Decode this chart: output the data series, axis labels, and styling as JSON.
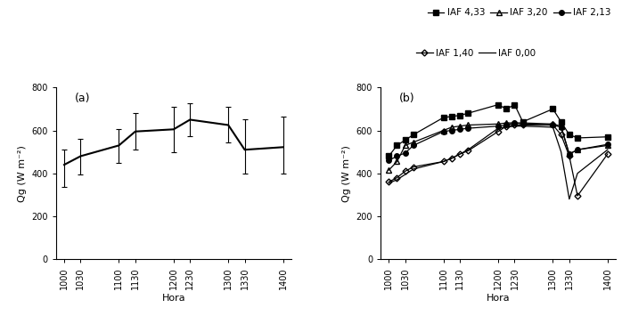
{
  "hours": [
    1000,
    1030,
    1100,
    1130,
    1200,
    1230,
    1300,
    1330,
    1400
  ],
  "hours_b": [
    1000,
    1015,
    1030,
    1045,
    1100,
    1115,
    1130,
    1145,
    1200,
    1215,
    1230,
    1245,
    1300,
    1315,
    1330,
    1345,
    1400
  ],
  "mean_a": [
    440,
    480,
    530,
    595,
    605,
    650,
    625,
    510,
    522
  ],
  "std_up_a": [
    510,
    560,
    605,
    680,
    710,
    725,
    710,
    650,
    665
  ],
  "std_dn_a": [
    335,
    395,
    450,
    510,
    500,
    575,
    545,
    400,
    400
  ],
  "iaf433": [
    480,
    530,
    555,
    580,
    660,
    665,
    670,
    680,
    720,
    700,
    720,
    640,
    700,
    640,
    580,
    565,
    570
  ],
  "iaf320": [
    415,
    455,
    530,
    545,
    600,
    615,
    620,
    625,
    630,
    635,
    635,
    635,
    630,
    620,
    490,
    510,
    530
  ],
  "iaf213": [
    460,
    480,
    495,
    530,
    595,
    600,
    605,
    610,
    620,
    625,
    635,
    630,
    625,
    615,
    490,
    510,
    535
  ],
  "iaf140": [
    360,
    380,
    410,
    430,
    455,
    470,
    490,
    505,
    595,
    620,
    625,
    625,
    625,
    580,
    480,
    295,
    490
  ],
  "iaf000": [
    355,
    370,
    395,
    420,
    455,
    470,
    490,
    510,
    610,
    615,
    620,
    620,
    615,
    500,
    280,
    400,
    510
  ],
  "legend_r1": [
    "IAF 4,33",
    "IAF 3,20",
    "IAF 2,13"
  ],
  "legend_r2": [
    "IAF 1,40",
    "IAF 0,00"
  ],
  "xlabel": "Hora",
  "ylabel_a": "Qg (W m⁻²)",
  "ylabel_b": "Qg (W m⁻²)",
  "yticks": [
    0,
    200,
    400,
    600,
    800
  ],
  "ylim": [
    0,
    800
  ],
  "panel_a_label": "(a)",
  "panel_b_label": "(b)"
}
